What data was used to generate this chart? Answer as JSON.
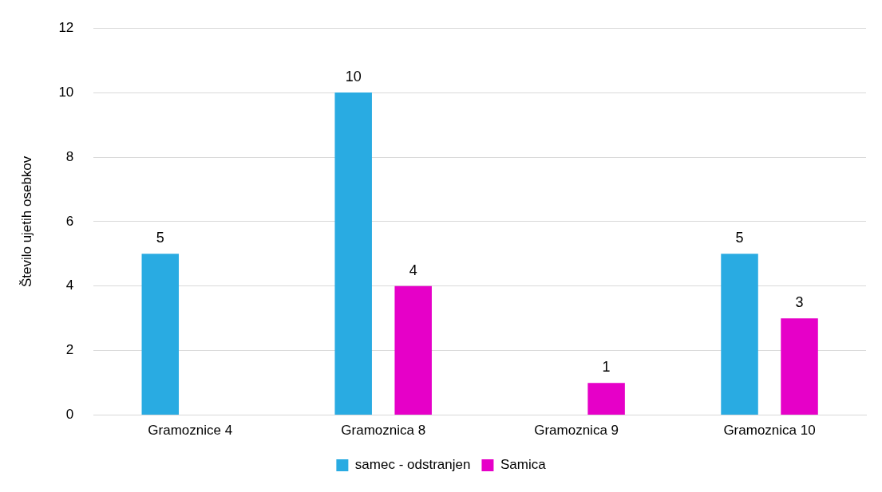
{
  "chart_data": {
    "type": "bar",
    "ylabel": "Število ujetih osebkov",
    "categories": [
      "Gramoznice 4",
      "Gramoznica 8",
      "Gramoznica 9",
      "Gramoznica 10"
    ],
    "series": [
      {
        "name": "samec - odstranjen",
        "color": "#29abe2",
        "values": [
          5,
          10,
          null,
          5
        ]
      },
      {
        "name": "Samica",
        "color": "#e600c8",
        "values": [
          null,
          4,
          1,
          3
        ]
      }
    ],
    "ylim": [
      0,
      12
    ],
    "yticks": [
      0,
      2,
      4,
      6,
      8,
      10,
      12
    ],
    "grid": "y",
    "legend": "bottom",
    "data_labels": true
  }
}
